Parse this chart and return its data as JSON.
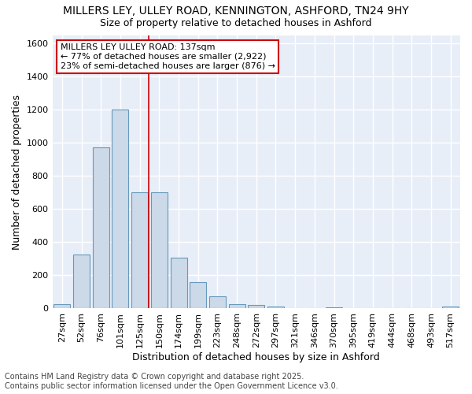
{
  "title_line1": "MILLERS LEY, ULLEY ROAD, KENNINGTON, ASHFORD, TN24 9HY",
  "title_line2": "Size of property relative to detached houses in Ashford",
  "xlabel": "Distribution of detached houses by size in Ashford",
  "ylabel": "Number of detached properties",
  "categories": [
    "27sqm",
    "52sqm",
    "76sqm",
    "101sqm",
    "125sqm",
    "150sqm",
    "174sqm",
    "199sqm",
    "223sqm",
    "248sqm",
    "272sqm",
    "297sqm",
    "321sqm",
    "346sqm",
    "370sqm",
    "395sqm",
    "419sqm",
    "444sqm",
    "468sqm",
    "493sqm",
    "517sqm"
  ],
  "values": [
    25,
    325,
    975,
    1200,
    700,
    700,
    305,
    160,
    75,
    25,
    20,
    12,
    0,
    0,
    8,
    0,
    0,
    0,
    0,
    0,
    12
  ],
  "bar_color": "#ccd9e8",
  "bar_edge_color": "#6699bb",
  "bg_color": "#e8eef8",
  "grid_color": "#ffffff",
  "annotation_text": "MILLERS LEY ULLEY ROAD: 137sqm\n← 77% of detached houses are smaller (2,922)\n23% of semi-detached houses are larger (876) →",
  "annotation_box_color": "#ffffff",
  "annotation_box_edge": "#cc0000",
  "vline_color": "#cc0000",
  "vline_pos": 4.48,
  "ylim": [
    0,
    1650
  ],
  "yticks": [
    0,
    200,
    400,
    600,
    800,
    1000,
    1200,
    1400,
    1600
  ],
  "footnote": "Contains HM Land Registry data © Crown copyright and database right 2025.\nContains public sector information licensed under the Open Government Licence v3.0.",
  "title_fontsize": 10,
  "subtitle_fontsize": 9,
  "axis_label_fontsize": 9,
  "tick_fontsize": 8,
  "annotation_fontsize": 8,
  "footnote_fontsize": 7
}
